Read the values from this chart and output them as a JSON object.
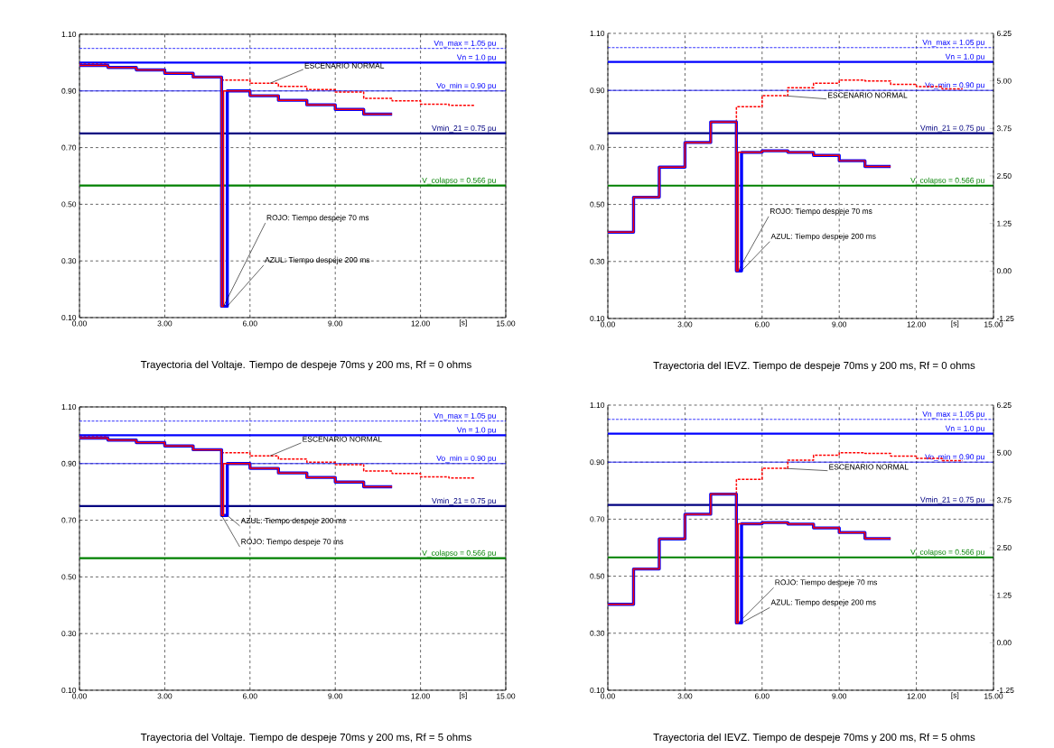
{
  "chart_data": [
    {
      "type": "step",
      "title": "Trayectoria del Voltaje. Tiempo de despeje 70ms y 200 ms, Rf = 0 ohms",
      "xlabel": "[s]",
      "xlim": [
        0,
        15
      ],
      "xticks": [
        {
          "value": 0,
          "label": "0.00"
        },
        {
          "value": 3,
          "label": "3.00"
        },
        {
          "value": 6,
          "label": "6.00"
        },
        {
          "value": 9,
          "label": "9.00"
        },
        {
          "value": 12,
          "label": "12.00"
        },
        {
          "value": 15,
          "label": "15.00"
        }
      ],
      "ylim": [
        0.1,
        1.1
      ],
      "yticks": [
        {
          "value": 0.1,
          "label": "0.10"
        },
        {
          "value": 0.3,
          "label": "0.30"
        },
        {
          "value": 0.5,
          "label": "0.50"
        },
        {
          "value": 0.7,
          "label": "0.70"
        },
        {
          "value": 0.9,
          "label": "0.90"
        },
        {
          "value": 1.1,
          "label": "1.10"
        }
      ],
      "grid": true,
      "ref_lines": [
        {
          "axis": "y",
          "value": 1.05,
          "label": "Vn_max = 1.05 pu",
          "color": "#0000ff",
          "line_style": "dashed"
        },
        {
          "axis": "y",
          "value": 1.0,
          "label": "Vn = 1.0 pu",
          "color": "#0000ff",
          "line_style": "solid"
        },
        {
          "axis": "y",
          "value": 0.9,
          "label": "Vo_min = 0.90 pu",
          "color": "#0000ff",
          "line_style": "solid"
        },
        {
          "axis": "y",
          "value": 0.75,
          "label": "Vmin_21 = 0.75 pu",
          "color": "#000080",
          "line_style": "solid"
        },
        {
          "axis": "y",
          "value": 0.566,
          "label": "V_colapso = 0.566 pu",
          "color": "#008000",
          "line_style": "solid"
        }
      ],
      "annotations": [
        {
          "text": "ESCENARIO NORMAL",
          "x": 6.7,
          "y": 0.927
        },
        {
          "text": "ROJO: Tiempo despeje 70 ms",
          "x": 5.07,
          "y": 0.14
        },
        {
          "text": "AZUL: Tiempo despeje 200 ms",
          "x": 5.2,
          "y": 0.14
        }
      ],
      "series": [
        {
          "color": "#ff0000",
          "line_style": "dashed",
          "x": [
            0,
            1,
            2,
            3,
            4,
            5,
            6,
            7,
            8,
            9,
            10,
            11,
            12,
            13,
            13.9
          ],
          "values": [
            0.995,
            0.983,
            0.974,
            0.962,
            0.949,
            0.938,
            0.927,
            0.916,
            0.905,
            0.896,
            0.874,
            0.865,
            0.853,
            0.849,
            0.849
          ]
        },
        {
          "color": "#0000ff",
          "line_style": "solid",
          "x": [
            0,
            1,
            2,
            3,
            4,
            5,
            5.2,
            6,
            7,
            8,
            9,
            10,
            11
          ],
          "values": [
            0.99,
            0.983,
            0.974,
            0.962,
            0.949,
            0.14,
            0.9,
            0.883,
            0.867,
            0.851,
            0.835,
            0.818,
            0.818
          ]
        },
        {
          "color": "#ff0000",
          "line_style": "solid",
          "x": [
            0,
            1,
            2,
            3,
            4,
            5,
            5.07,
            6,
            7,
            8,
            9,
            10,
            11
          ],
          "values": [
            0.99,
            0.983,
            0.974,
            0.962,
            0.949,
            0.14,
            0.9,
            0.883,
            0.867,
            0.851,
            0.835,
            0.818,
            0.818
          ]
        }
      ]
    },
    {
      "type": "step",
      "title": "Trayectoria del IEVZ. Tiempo de despeje 70ms y 200 ms, Rf = 0 ohms",
      "xlabel": "[s]",
      "xlim": [
        0,
        15
      ],
      "xticks": [
        {
          "value": 0,
          "label": "0.00"
        },
        {
          "value": 3,
          "label": "3.00"
        },
        {
          "value": 6,
          "label": "6.00"
        },
        {
          "value": 9,
          "label": "9.00"
        },
        {
          "value": 12,
          "label": "12.00"
        },
        {
          "value": 15,
          "label": "15.00"
        }
      ],
      "ylim": [
        0.1,
        1.1
      ],
      "yticks": [
        {
          "value": 0.1,
          "label": "0.10"
        },
        {
          "value": 0.3,
          "label": "0.30"
        },
        {
          "value": 0.5,
          "label": "0.50"
        },
        {
          "value": 0.7,
          "label": "0.70"
        },
        {
          "value": 0.9,
          "label": "0.90"
        },
        {
          "value": 1.1,
          "label": "1.10"
        }
      ],
      "y2lim": [
        -1.25,
        6.25
      ],
      "y2ticks": [
        {
          "value": -1.25,
          "label": "-1.25"
        },
        {
          "value": 0,
          "label": "0.00"
        },
        {
          "value": 1.25,
          "label": "1.25"
        },
        {
          "value": 2.5,
          "label": "2.50"
        },
        {
          "value": 3.75,
          "label": "3.75"
        },
        {
          "value": 5,
          "label": "5.00"
        },
        {
          "value": 6.25,
          "label": "6.25"
        }
      ],
      "grid": true,
      "ref_lines": [
        {
          "axis": "y",
          "value": 1.05,
          "label": "Vn_max = 1.05 pu",
          "color": "#0000ff",
          "line_style": "dashed"
        },
        {
          "axis": "y",
          "value": 1.0,
          "label": "Vn = 1.0 pu",
          "color": "#0000ff",
          "line_style": "solid"
        },
        {
          "axis": "y",
          "value": 0.9,
          "label": "Vo_min = 0.90 pu",
          "color": "#0000ff",
          "line_style": "solid"
        },
        {
          "axis": "y",
          "value": 0.75,
          "label": "Vmin_21 = 0.75 pu",
          "color": "#000080",
          "line_style": "solid"
        },
        {
          "axis": "y",
          "value": 0.566,
          "label": "V_colapso = 0.566 pu",
          "color": "#008000",
          "line_style": "solid"
        }
      ],
      "annotations": [
        {
          "text": "ESCENARIO NORMAL",
          "x": 6.9,
          "y": 0.881
        },
        {
          "text": "ROJO: Tiempo despeje 70 ms",
          "x": 5.07,
          "y": 0.267
        },
        {
          "text": "AZUL: Tiempo despeje 200 ms",
          "x": 5.2,
          "y": 0.267
        }
      ],
      "series": [
        {
          "axis": "y2",
          "color": "#ff0000",
          "line_style": "dashed",
          "x": [
            0,
            1,
            2,
            3,
            4,
            5,
            6,
            7,
            8,
            9,
            10,
            11,
            12,
            13,
            13.8
          ],
          "values": [
            1.02,
            1.94,
            2.73,
            3.38,
            3.92,
            4.32,
            4.61,
            4.82,
            4.94,
            5.02,
            5.0,
            4.91,
            4.85,
            4.79,
            4.79
          ]
        },
        {
          "axis": "y2",
          "color": "#0000ff",
          "line_style": "solid",
          "x": [
            0,
            1,
            2,
            3,
            4,
            5,
            5.2,
            6,
            7,
            8,
            9,
            10,
            11
          ],
          "values": [
            1.02,
            1.94,
            2.73,
            3.38,
            3.92,
            0.0,
            3.12,
            3.16,
            3.12,
            3.04,
            2.9,
            2.75,
            2.75
          ]
        },
        {
          "axis": "y2",
          "color": "#ff0000",
          "line_style": "solid",
          "x": [
            0,
            1,
            2,
            3,
            4,
            5,
            5.07,
            6,
            7,
            8,
            9,
            10,
            11
          ],
          "values": [
            1.02,
            1.94,
            2.73,
            3.38,
            3.92,
            0.0,
            3.12,
            3.16,
            3.12,
            3.04,
            2.9,
            2.75,
            2.75
          ]
        }
      ]
    },
    {
      "type": "step",
      "title": "Trayectoria del Voltaje. Tiempo de despeje 70ms y 200 ms, Rf = 5 ohms",
      "xlabel": "[s]",
      "xlim": [
        0,
        15
      ],
      "xticks": [
        {
          "value": 0,
          "label": "0.00"
        },
        {
          "value": 3,
          "label": "3.00"
        },
        {
          "value": 6,
          "label": "6.00"
        },
        {
          "value": 9,
          "label": "9.00"
        },
        {
          "value": 12,
          "label": "12.00"
        },
        {
          "value": 15,
          "label": "15.00"
        }
      ],
      "ylim": [
        0.1,
        1.1
      ],
      "yticks": [
        {
          "value": 0.1,
          "label": "0.10"
        },
        {
          "value": 0.3,
          "label": "0.30"
        },
        {
          "value": 0.5,
          "label": "0.50"
        },
        {
          "value": 0.7,
          "label": "0.70"
        },
        {
          "value": 0.9,
          "label": "0.90"
        },
        {
          "value": 1.1,
          "label": "1.10"
        }
      ],
      "grid": true,
      "ref_lines": [
        {
          "axis": "y",
          "value": 1.05,
          "label": "Vn_max = 1.05 pu",
          "color": "#0000ff",
          "line_style": "dashed"
        },
        {
          "axis": "y",
          "value": 1.0,
          "label": "Vn = 1.0 pu",
          "color": "#0000ff",
          "line_style": "solid"
        },
        {
          "axis": "y",
          "value": 0.9,
          "label": "Vo_min = 0.90 pu",
          "color": "#0000ff",
          "line_style": "solid"
        },
        {
          "axis": "y",
          "value": 0.75,
          "label": "Vmin_21 = 0.75 pu",
          "color": "#000080",
          "line_style": "solid"
        },
        {
          "axis": "y",
          "value": 0.566,
          "label": "V_colapso = 0.566 pu",
          "color": "#008000",
          "line_style": "solid"
        }
      ],
      "annotations": [
        {
          "text": "ESCENARIO NORMAL",
          "x": 6.7,
          "y": 0.927
        },
        {
          "text": "AZUL: Tiempo despeje 200 ms",
          "x": 5.2,
          "y": 0.717
        },
        {
          "text": "ROJO: Tiempo despeje 70 ms",
          "x": 5.0,
          "y": 0.717
        }
      ],
      "series": [
        {
          "color": "#ff0000",
          "line_style": "dashed",
          "x": [
            0,
            1,
            2,
            3,
            4,
            5,
            6,
            7,
            8,
            9,
            10,
            11,
            12,
            13,
            13.9
          ],
          "values": [
            0.995,
            0.983,
            0.974,
            0.962,
            0.949,
            0.938,
            0.927,
            0.916,
            0.905,
            0.896,
            0.874,
            0.865,
            0.853,
            0.849,
            0.849
          ]
        },
        {
          "color": "#0000ff",
          "line_style": "solid",
          "x": [
            0,
            1,
            2,
            3,
            4,
            5,
            5.2,
            6,
            7,
            8,
            9,
            10,
            11
          ],
          "values": [
            0.99,
            0.983,
            0.974,
            0.962,
            0.949,
            0.717,
            0.9,
            0.883,
            0.867,
            0.851,
            0.835,
            0.818,
            0.818
          ]
        },
        {
          "color": "#ff0000",
          "line_style": "solid",
          "x": [
            0,
            1,
            2,
            3,
            4,
            5,
            5.07,
            6,
            7,
            8,
            9,
            10,
            11
          ],
          "values": [
            0.99,
            0.983,
            0.974,
            0.962,
            0.949,
            0.717,
            0.9,
            0.883,
            0.867,
            0.851,
            0.835,
            0.818,
            0.818
          ]
        }
      ]
    },
    {
      "type": "step",
      "title": "Trayectoria del IEVZ. Tiempo de despeje 70ms y 200 ms, Rf = 5 ohms",
      "xlabel": "[s]",
      "xlim": [
        0,
        15
      ],
      "xticks": [
        {
          "value": 0,
          "label": "0.00"
        },
        {
          "value": 3,
          "label": "3.00"
        },
        {
          "value": 6,
          "label": "6.00"
        },
        {
          "value": 9,
          "label": "9.00"
        },
        {
          "value": 12,
          "label": "12.00"
        },
        {
          "value": 15,
          "label": "15.00"
        }
      ],
      "ylim": [
        0.1,
        1.1
      ],
      "yticks": [
        {
          "value": 0.1,
          "label": "0.10"
        },
        {
          "value": 0.3,
          "label": "0.30"
        },
        {
          "value": 0.5,
          "label": "0.50"
        },
        {
          "value": 0.7,
          "label": "0.70"
        },
        {
          "value": 0.9,
          "label": "0.90"
        },
        {
          "value": 1.1,
          "label": "1.10"
        }
      ],
      "y2lim": [
        -1.25,
        6.25
      ],
      "y2ticks": [
        {
          "value": -1.25,
          "label": "-1.25"
        },
        {
          "value": 0,
          "label": "0.00"
        },
        {
          "value": 1.25,
          "label": "1.25"
        },
        {
          "value": 2.5,
          "label": "2.50"
        },
        {
          "value": 3.75,
          "label": "3.75"
        },
        {
          "value": 5,
          "label": "5.00"
        },
        {
          "value": 6.25,
          "label": "6.25"
        }
      ],
      "grid": true,
      "ref_lines": [
        {
          "axis": "y",
          "value": 1.05,
          "label": "Vn_max = 1.05 pu",
          "color": "#0000ff",
          "line_style": "dashed"
        },
        {
          "axis": "y",
          "value": 1.0,
          "label": "Vn = 1.0 pu",
          "color": "#0000ff",
          "line_style": "solid"
        },
        {
          "axis": "y",
          "value": 0.9,
          "label": "Vo_min = 0.90 pu",
          "color": "#0000ff",
          "line_style": "solid"
        },
        {
          "axis": "y",
          "value": 0.75,
          "label": "Vmin_21 = 0.75 pu",
          "color": "#000080",
          "line_style": "solid"
        },
        {
          "axis": "y",
          "value": 0.566,
          "label": "V_colapso = 0.566 pu",
          "color": "#008000",
          "line_style": "solid"
        }
      ],
      "annotations": [
        {
          "text": "ESCENARIO NORMAL",
          "x": 6.9,
          "y": 0.878
        },
        {
          "text": "ROJO: Tiempo despeje 70 ms",
          "x": 5.07,
          "y": 0.336
        },
        {
          "text": "AZUL: Tiempo despeje 200 ms",
          "x": 5.2,
          "y": 0.336
        }
      ],
      "series": [
        {
          "axis": "y2",
          "color": "#ff0000",
          "line_style": "dashed",
          "x": [
            0,
            1,
            2,
            3,
            4,
            5,
            6,
            7,
            8,
            9,
            10,
            11,
            12,
            13,
            13.8
          ],
          "values": [
            1.01,
            1.94,
            2.73,
            3.38,
            3.91,
            4.3,
            4.59,
            4.8,
            4.93,
            5.0,
            4.98,
            4.91,
            4.85,
            4.79,
            4.79
          ]
        },
        {
          "axis": "y2",
          "color": "#0000ff",
          "line_style": "solid",
          "x": [
            0,
            1,
            2,
            3,
            4,
            5,
            5.2,
            6,
            7,
            8,
            9,
            10,
            11
          ],
          "values": [
            1.01,
            1.94,
            2.73,
            3.38,
            3.91,
            0.52,
            3.13,
            3.16,
            3.12,
            3.02,
            2.9,
            2.74,
            2.74
          ]
        },
        {
          "axis": "y2",
          "color": "#ff0000",
          "line_style": "solid",
          "x": [
            0,
            1,
            2,
            3,
            4,
            5,
            5.07,
            6,
            7,
            8,
            9,
            10,
            11
          ],
          "values": [
            1.01,
            1.94,
            2.73,
            3.38,
            3.91,
            0.52,
            3.13,
            3.16,
            3.12,
            3.02,
            2.9,
            2.74,
            2.74
          ]
        }
      ]
    }
  ]
}
